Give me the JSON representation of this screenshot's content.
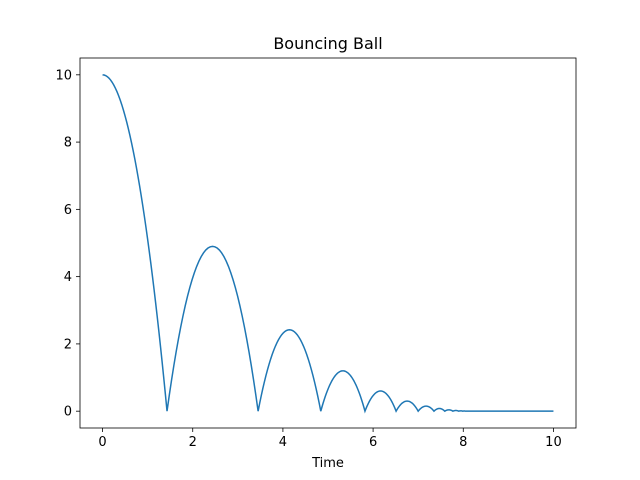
{
  "chart_data": {
    "type": "line",
    "title": "Bouncing Ball",
    "xlabel": "Time",
    "ylabel": "",
    "xlim": [
      -0.5,
      10.5
    ],
    "ylim": [
      -0.5,
      10.5
    ],
    "xticks": [
      0,
      2,
      4,
      6,
      8,
      10
    ],
    "yticks": [
      0,
      2,
      4,
      6,
      8,
      10
    ],
    "grid": false,
    "legend": "none",
    "series": [
      {
        "color": "#1f77b4",
        "bounce_times": [
          1.43,
          3.45,
          4.84,
          5.82,
          6.51,
          7.0,
          7.35,
          7.59,
          7.77,
          7.9,
          7.99,
          8.05
        ],
        "peaks": [
          {
            "x": 0,
            "y": 10.0
          },
          {
            "x": 2.44,
            "y": 4.9
          },
          {
            "x": 4.14,
            "y": 2.42
          },
          {
            "x": 5.33,
            "y": 1.2
          },
          {
            "x": 6.17,
            "y": 0.6
          },
          {
            "x": 6.76,
            "y": 0.3
          },
          {
            "x": 7.18,
            "y": 0.15
          },
          {
            "x": 7.47,
            "y": 0.08
          },
          {
            "x": 7.68,
            "y": 0.04
          },
          {
            "x": 7.84,
            "y": 0.02
          },
          {
            "x": 7.95,
            "y": 0.01
          },
          {
            "x": 8.02,
            "y": 0.005
          }
        ],
        "rest_until": 10.0
      }
    ]
  }
}
